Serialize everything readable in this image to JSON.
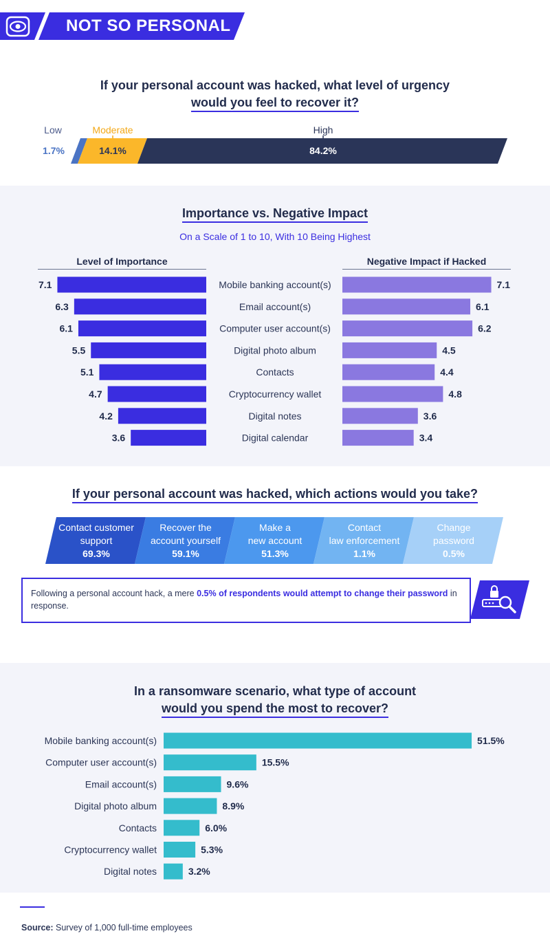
{
  "header": {
    "title": "NOT SO PERSONAL",
    "icon": "eye-icon"
  },
  "colors": {
    "navy": "#2a3558",
    "blue": "#3a2de0",
    "purple": "#8a78e0",
    "gold": "#fbb72a",
    "teal": "#34bccc",
    "steel": "#4b74c4"
  },
  "urgency": {
    "title_line1": "If your personal account was hacked, what level of urgency",
    "title_line2": "would you feel to recover it?",
    "segments": [
      {
        "label": "Low",
        "value": "1.7%"
      },
      {
        "label": "Moderate",
        "value": "14.1%"
      },
      {
        "label": "High",
        "value": "84.2%"
      }
    ]
  },
  "importance": {
    "title": "Importance vs. Negative Impact",
    "subtitle": "On a Scale of 1 to 10, With 10 Being Highest",
    "left_header": "Level of Importance",
    "right_header": "Negative Impact if Hacked"
  },
  "actions": {
    "title": "If your personal account was hacked, which actions would you take?",
    "items": [
      {
        "line1": "Contact customer",
        "line2": "support",
        "value": "69.3%"
      },
      {
        "line1": "Recover the",
        "line2": "account yourself",
        "value": "59.1%"
      },
      {
        "line1": "Make a",
        "line2": "new account",
        "value": "51.3%"
      },
      {
        "line1": "Contact",
        "line2": "law enforcement",
        "value": "1.1%"
      },
      {
        "line1": "Change",
        "line2": "password",
        "value": "0.5%"
      }
    ],
    "callout_pre": "Following a personal account hack, a mere ",
    "callout_highlight": "0.5% of respondents would attempt to change their password",
    "callout_post": " in response.",
    "callout_icon": "lock-search-icon"
  },
  "ransom": {
    "title_line1": "In a ransomware scenario, what type of account",
    "title_line2": "would you spend the most to recover?"
  },
  "source": {
    "label": "Source:",
    "text": " Survey of 1,000 full-time employees"
  },
  "chart_data": [
    {
      "type": "bar",
      "title": "If your personal account was hacked, what level of urgency would you feel to recover it?",
      "orientation": "stacked-horizontal",
      "categories": [
        "Low",
        "Moderate",
        "High"
      ],
      "values": [
        1.7,
        14.1,
        84.2
      ],
      "unit": "%"
    },
    {
      "type": "bar",
      "title": "Importance vs. Negative Impact",
      "subtitle": "On a Scale of 1 to 10, With 10 Being Highest",
      "categories": [
        "Mobile banking account(s)",
        "Email account(s)",
        "Computer user account(s)",
        "Digital photo album",
        "Contacts",
        "Cryptocurrency wallet",
        "Digital notes",
        "Digital calendar"
      ],
      "series": [
        {
          "name": "Level of Importance",
          "values": [
            7.1,
            6.3,
            6.1,
            5.5,
            5.1,
            4.7,
            4.2,
            3.6
          ]
        },
        {
          "name": "Negative Impact if Hacked",
          "values": [
            7.1,
            6.1,
            6.2,
            4.5,
            4.4,
            4.8,
            3.6,
            3.4
          ]
        }
      ],
      "ylim": [
        0,
        10
      ]
    },
    {
      "type": "bar",
      "title": "In a ransomware scenario, what type of account would you spend the most to recover?",
      "categories": [
        "Mobile banking account(s)",
        "Computer user account(s)",
        "Email account(s)",
        "Digital photo album",
        "Contacts",
        "Cryptocurrency wallet",
        "Digital notes"
      ],
      "values": [
        51.5,
        15.5,
        9.6,
        8.9,
        6.0,
        5.3,
        3.2
      ],
      "unit": "%"
    }
  ]
}
